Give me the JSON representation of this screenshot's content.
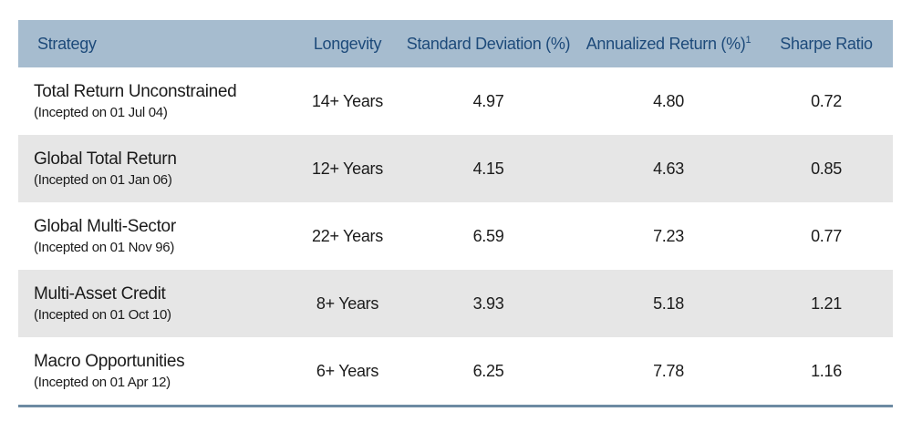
{
  "header": {
    "strategy": "Strategy",
    "longevity": "Longevity",
    "std_dev": "Standard Deviation (%)",
    "ann_return": "Annualized Return (%)",
    "ann_return_footnote": "1",
    "sharpe": "Sharpe Ratio"
  },
  "rows": [
    {
      "name": "Total Return Unconstrained",
      "incepted": "(Incepted on 01 Jul 04)",
      "longevity": "14+ Years",
      "std_dev": "4.97",
      "ann_return": "4.80",
      "sharpe": "0.72"
    },
    {
      "name": "Global Total Return",
      "incepted": "(Incepted on 01 Jan 06)",
      "longevity": "12+ Years",
      "std_dev": "4.15",
      "ann_return": "4.63",
      "sharpe": "0.85"
    },
    {
      "name": "Global Multi-Sector",
      "incepted": "(Incepted on 01 Nov 96)",
      "longevity": "22+ Years",
      "std_dev": "6.59",
      "ann_return": "7.23",
      "sharpe": "0.77"
    },
    {
      "name": "Multi-Asset Credit",
      "incepted": "(Incepted on 01 Oct 10)",
      "longevity": "8+ Years",
      "std_dev": "3.93",
      "ann_return": "5.18",
      "sharpe": "1.21"
    },
    {
      "name": "Macro Opportunities",
      "incepted": "(Incepted on 01 Apr 12)",
      "longevity": "6+ Years",
      "std_dev": "6.25",
      "ann_return": "7.78",
      "sharpe": "1.16"
    }
  ],
  "colors": {
    "header_bg": "#a6bccf",
    "header_text": "#1d4a7a",
    "stripe_bg": "#e6e6e6",
    "rule": "#6d8aa3"
  }
}
